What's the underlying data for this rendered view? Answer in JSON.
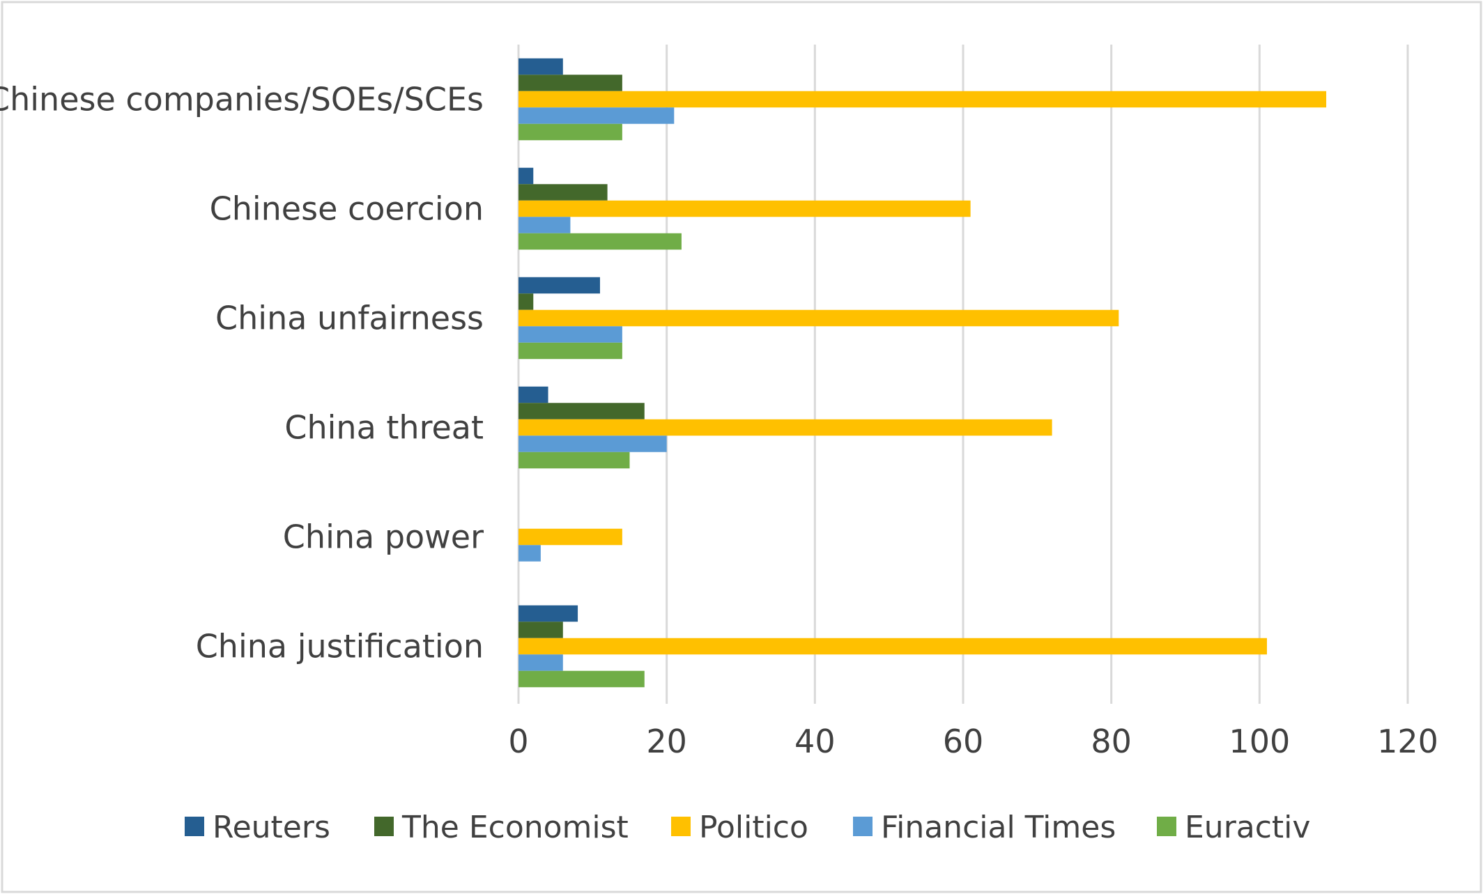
{
  "chart_data": {
    "type": "bar",
    "orientation": "horizontal",
    "title": "",
    "xlabel": "",
    "ylabel": "",
    "categories": [
      "Chinese companies/SOEs/SCEs",
      "Chinese coercion",
      "China unfairness",
      "China threat",
      "China power",
      "China justification"
    ],
    "series": [
      {
        "name": "Reuters",
        "color": "#255E91",
        "values": [
          6,
          2,
          11,
          4,
          0,
          8
        ]
      },
      {
        "name": "The Economist",
        "color": "#43682B",
        "values": [
          14,
          12,
          2,
          17,
          0,
          6
        ]
      },
      {
        "name": "Politico",
        "color": "#FFC000",
        "values": [
          109,
          61,
          81,
          72,
          14,
          101
        ]
      },
      {
        "name": "Financial Times",
        "color": "#5B9BD5",
        "values": [
          21,
          7,
          14,
          20,
          3,
          6
        ]
      },
      {
        "name": "Euractiv",
        "color": "#70AD47",
        "values": [
          14,
          22,
          14,
          15,
          0,
          17
        ]
      }
    ],
    "xlim": [
      0,
      120
    ],
    "xticks": [
      0,
      20,
      40,
      60,
      80,
      100,
      120
    ],
    "xtick_labels": [
      "0",
      "20",
      "40",
      "60",
      "80",
      "100",
      "120"
    ],
    "grid": true,
    "legend_position": "bottom",
    "colors": {
      "gridline": "#D9D9D9",
      "frame": "#D9D9D9",
      "text": "#404040"
    }
  }
}
